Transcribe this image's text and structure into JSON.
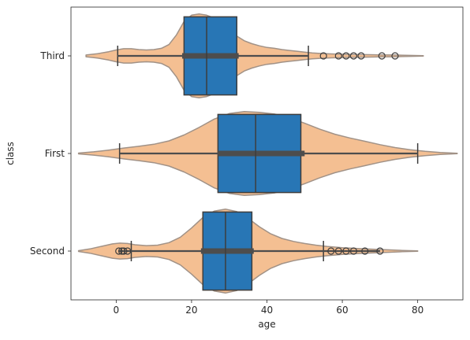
{
  "chart_data": {
    "type": "box-violin",
    "orientation": "horizontal",
    "xlabel": "age",
    "ylabel": "class",
    "xlim": [
      -12,
      92
    ],
    "xticks": [
      0,
      20,
      40,
      60,
      80
    ],
    "grid": false,
    "legend": "none",
    "colors": {
      "violin_fill": "#f4bf92",
      "violin_edge": "#a19287",
      "box_fill": "#2876b5",
      "whisker": "#3d3d3d",
      "inner": "#4d4d4d"
    },
    "categories": [
      "Third",
      "First",
      "Second"
    ],
    "series": [
      {
        "category": "Third",
        "box": {
          "whisker_low": 0.4,
          "q1": 18,
          "median": 24,
          "q3": 32,
          "whisker_high": 51
        },
        "outliers": [
          55,
          59,
          61,
          63,
          65,
          70.5,
          74
        ],
        "violin_inner": {
          "q1": 17.5,
          "median": 24,
          "q3": 32.5,
          "range": [
            0.4,
            51
          ]
        },
        "violin": {
          "x": [
            -8,
            -5,
            -2,
            0,
            2,
            4,
            6,
            8,
            10,
            12,
            14,
            16,
            18,
            20,
            22,
            24,
            26,
            28,
            30,
            32,
            34,
            36,
            38,
            40,
            42,
            44,
            46,
            48,
            50,
            52,
            55,
            58,
            62,
            66,
            70,
            74,
            78,
            81.5
          ],
          "width": [
            0.02,
            0.05,
            0.1,
            0.14,
            0.17,
            0.17,
            0.15,
            0.14,
            0.15,
            0.18,
            0.27,
            0.5,
            0.82,
            0.97,
            1.0,
            0.97,
            0.9,
            0.78,
            0.62,
            0.47,
            0.36,
            0.29,
            0.24,
            0.2,
            0.18,
            0.15,
            0.13,
            0.11,
            0.09,
            0.07,
            0.055,
            0.045,
            0.035,
            0.03,
            0.025,
            0.02,
            0.012,
            0.005
          ]
        }
      },
      {
        "category": "First",
        "box": {
          "whisker_low": 0.9,
          "q1": 27,
          "median": 37,
          "q3": 49,
          "whisker_high": 80
        },
        "outliers": [],
        "violin_inner": {
          "q1": 27,
          "median": 37,
          "q3": 50,
          "range": [
            0.9,
            80
          ]
        },
        "violin": {
          "x": [
            -10,
            -6,
            -2,
            2,
            6,
            10,
            14,
            18,
            22,
            26,
            30,
            34,
            38,
            42,
            46,
            50,
            54,
            58,
            62,
            66,
            70,
            74,
            78,
            82,
            86,
            90.5
          ],
          "width": [
            0.01,
            0.04,
            0.08,
            0.13,
            0.17,
            0.22,
            0.3,
            0.44,
            0.62,
            0.82,
            0.95,
            1.0,
            0.98,
            0.94,
            0.85,
            0.72,
            0.58,
            0.46,
            0.37,
            0.29,
            0.21,
            0.14,
            0.09,
            0.05,
            0.025,
            0.005
          ]
        }
      },
      {
        "category": "Second",
        "box": {
          "whisker_low": 4,
          "q1": 23,
          "median": 29,
          "q3": 36,
          "whisker_high": 55
        },
        "outliers": [
          0.7,
          1.5,
          2,
          3,
          57,
          59,
          61,
          63,
          66,
          70
        ],
        "violin_inner": {
          "q1": 22.5,
          "median": 29,
          "q3": 36.5,
          "range": [
            0.7,
            70
          ]
        },
        "violin": {
          "x": [
            -10,
            -7,
            -4,
            -1,
            1,
            3,
            5,
            8,
            11,
            14,
            17,
            20,
            23,
            26,
            29,
            32,
            35,
            38,
            41,
            44,
            47,
            50,
            53,
            56,
            60,
            64,
            68,
            72,
            76,
            80
          ],
          "width": [
            0.01,
            0.05,
            0.11,
            0.17,
            0.19,
            0.18,
            0.15,
            0.13,
            0.14,
            0.2,
            0.33,
            0.55,
            0.8,
            0.95,
            1.0,
            0.94,
            0.78,
            0.58,
            0.41,
            0.3,
            0.23,
            0.18,
            0.14,
            0.11,
            0.08,
            0.06,
            0.045,
            0.03,
            0.015,
            0.005
          ]
        }
      }
    ]
  }
}
